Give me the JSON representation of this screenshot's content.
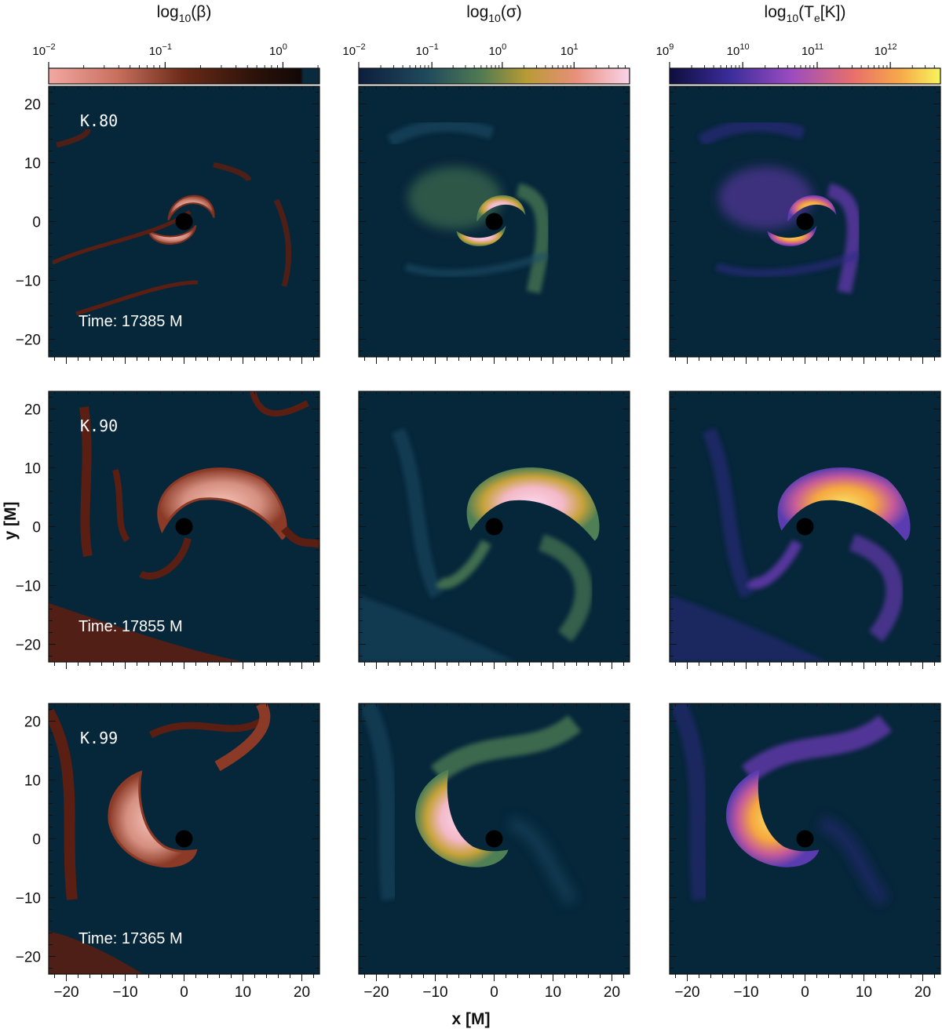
{
  "columns": [
    {
      "title_main": "log",
      "title_sub": "10",
      "title_arg": "(β)",
      "ticks": [
        "10",
        "10",
        "10"
      ],
      "exps": [
        "−2",
        "−1",
        "0"
      ],
      "colors": {
        "low": "#f0a7a0",
        "mid": "#5a1f12",
        "dark": "#1a0c08",
        "tail": "#0a2a3d"
      }
    },
    {
      "title_main": "log",
      "title_sub": "10",
      "title_arg": "(σ)",
      "ticks": [
        "10",
        "10",
        "10",
        "10"
      ],
      "exps": [
        "−2",
        "−1",
        "0",
        "1"
      ],
      "colors": {
        "low": "#0d2a44",
        "mid": "#4f7f5a",
        "hi": "#c9a73a",
        "top": "#f8c9de"
      }
    },
    {
      "title_main": "log",
      "title_sub": "10",
      "title_arg": "(T",
      "title_e": "e",
      "title_end": "[K])",
      "ticks": [
        "10",
        "10",
        "10",
        "10"
      ],
      "exps": [
        "9",
        "10",
        "11",
        "12"
      ],
      "colors": {
        "low": "#0f0f45",
        "mid": "#8a3fc0",
        "hi": "#f07a4a",
        "top": "#f7f06a"
      }
    }
  ],
  "rows": [
    {
      "model": "K.80",
      "time": "Time: 17385 M"
    },
    {
      "model": "K.90",
      "time": "Time: 17855 M"
    },
    {
      "model": "K.99",
      "time": "Time: 17365 M"
    }
  ],
  "axes": {
    "xlabel": "x [M]",
    "ylabel": "y [M]",
    "xticks": [
      "−20",
      "−10",
      "0",
      "10",
      "20"
    ],
    "yticks": [
      "20",
      "10",
      "0",
      "−10",
      "−20"
    ]
  },
  "background_color": "#06263a"
}
